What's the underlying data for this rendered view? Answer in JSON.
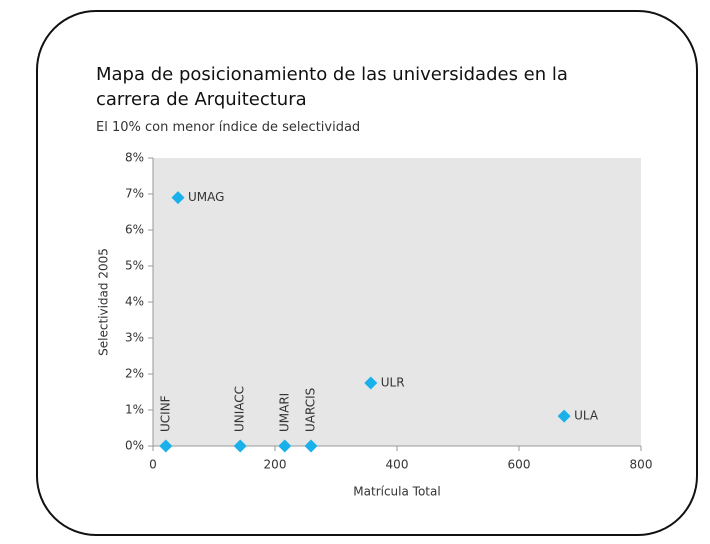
{
  "chart_data": {
    "type": "scatter",
    "title": "Mapa de posicionamiento de las universidades en la carrera de Arquitectura",
    "subtitle": "El 10% con menor índice de selectividad",
    "x_label": "Matrícula Total",
    "y_label": "Selectividad 2005",
    "labels": [
      "UMAG",
      "ULR",
      "ULA",
      "UCINF",
      "UNIACC",
      "UMARI",
      "UARCIS"
    ],
    "x": [
      41,
      357,
      674,
      21,
      143,
      216,
      259
    ],
    "values": [
      6.9,
      1.75,
      0.83,
      0,
      0,
      0,
      0
    ],
    "color": "#1ab0ea",
    "xlim": [
      0,
      800
    ],
    "xticks": [
      0,
      200,
      400,
      600,
      800
    ],
    "ylim": [
      0,
      8
    ],
    "yticks": [
      {
        "value": 0,
        "label": "0%"
      },
      {
        "value": 1,
        "label": "1%"
      },
      {
        "value": 2,
        "label": "2%"
      },
      {
        "value": 3,
        "label": "3%"
      },
      {
        "value": 4,
        "label": "4%"
      },
      {
        "value": 5,
        "label": "5%"
      },
      {
        "value": 6,
        "label": "6%"
      },
      {
        "value": 7,
        "label": "7%"
      },
      {
        "value": 8,
        "label": "8%"
      }
    ],
    "background": "#e6e6e6"
  }
}
